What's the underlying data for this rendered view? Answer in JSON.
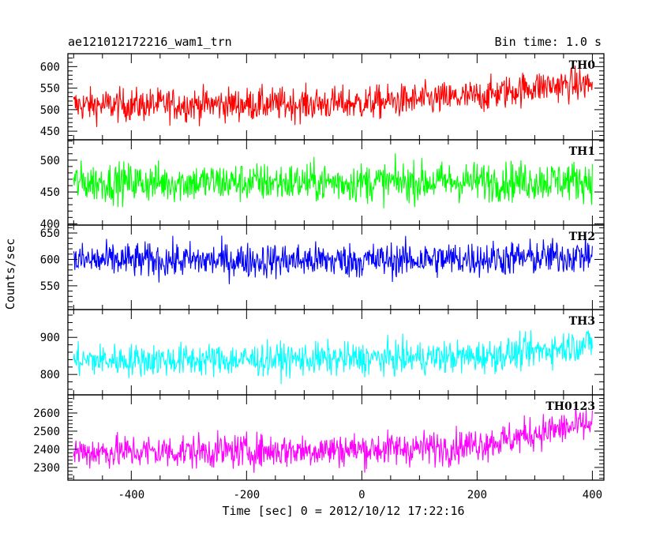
{
  "header": {
    "title_left": "ae121012172216_wam1_trn",
    "title_right": "Bin time: 1.0 s"
  },
  "axes": {
    "xlabel": "Time [sec] 0 = 2012/10/12 17:22:16",
    "ylabel": "Counts/sec"
  },
  "chart_data": {
    "type": "line",
    "shared_x": true,
    "xlim": [
      -510,
      420
    ],
    "x_ticks": [
      -400,
      -200,
      0,
      200,
      400
    ],
    "x_minor_step": 50,
    "x_data_range": [
      -500,
      400
    ],
    "bin_time_s": 1.0,
    "grid": false,
    "panels": [
      {
        "label": "TH0",
        "color": "#ff0000",
        "ylim": [
          430,
          630
        ],
        "y_ticks": [
          450,
          500,
          550,
          600
        ],
        "y_minor_step": 10,
        "trend": [
          [
            -500,
            510
          ],
          [
            -300,
            512
          ],
          [
            -100,
            513
          ],
          [
            0,
            515
          ],
          [
            200,
            530
          ],
          [
            300,
            553
          ],
          [
            400,
            560
          ]
        ],
        "noise_amplitude": 35
      },
      {
        "label": "TH1",
        "color": "#00ff00",
        "ylim": [
          398,
          532
        ],
        "y_ticks": [
          400,
          450,
          500
        ],
        "y_minor_step": 10,
        "trend": [
          [
            -500,
            465
          ],
          [
            0,
            465
          ],
          [
            400,
            468
          ]
        ],
        "noise_amplitude": 28
      },
      {
        "label": "TH2",
        "color": "#0000ff",
        "ylim": [
          505,
          665
        ],
        "y_ticks": [
          550,
          600,
          650
        ],
        "y_minor_step": 10,
        "trend": [
          [
            -500,
            598
          ],
          [
            0,
            598
          ],
          [
            300,
            603
          ],
          [
            400,
            608
          ]
        ],
        "noise_amplitude": 30
      },
      {
        "label": "TH3",
        "color": "#00ffff",
        "ylim": [
          745,
          975
        ],
        "y_ticks": [
          800,
          900
        ],
        "y_minor_step": 20,
        "trend": [
          [
            -500,
            838
          ],
          [
            -200,
            840
          ],
          [
            0,
            842
          ],
          [
            200,
            848
          ],
          [
            300,
            862
          ],
          [
            400,
            885
          ]
        ],
        "noise_amplitude": 40
      },
      {
        "label": "TH0123",
        "color": "#ff00ff",
        "ylim": [
          2230,
          2700
        ],
        "y_ticks": [
          2300,
          2400,
          2500,
          2600
        ],
        "y_minor_step": 20,
        "trend": [
          [
            -500,
            2385
          ],
          [
            -200,
            2390
          ],
          [
            0,
            2400
          ],
          [
            150,
            2410
          ],
          [
            250,
            2450
          ],
          [
            300,
            2490
          ],
          [
            400,
            2540
          ]
        ],
        "noise_amplitude": 85
      }
    ]
  }
}
